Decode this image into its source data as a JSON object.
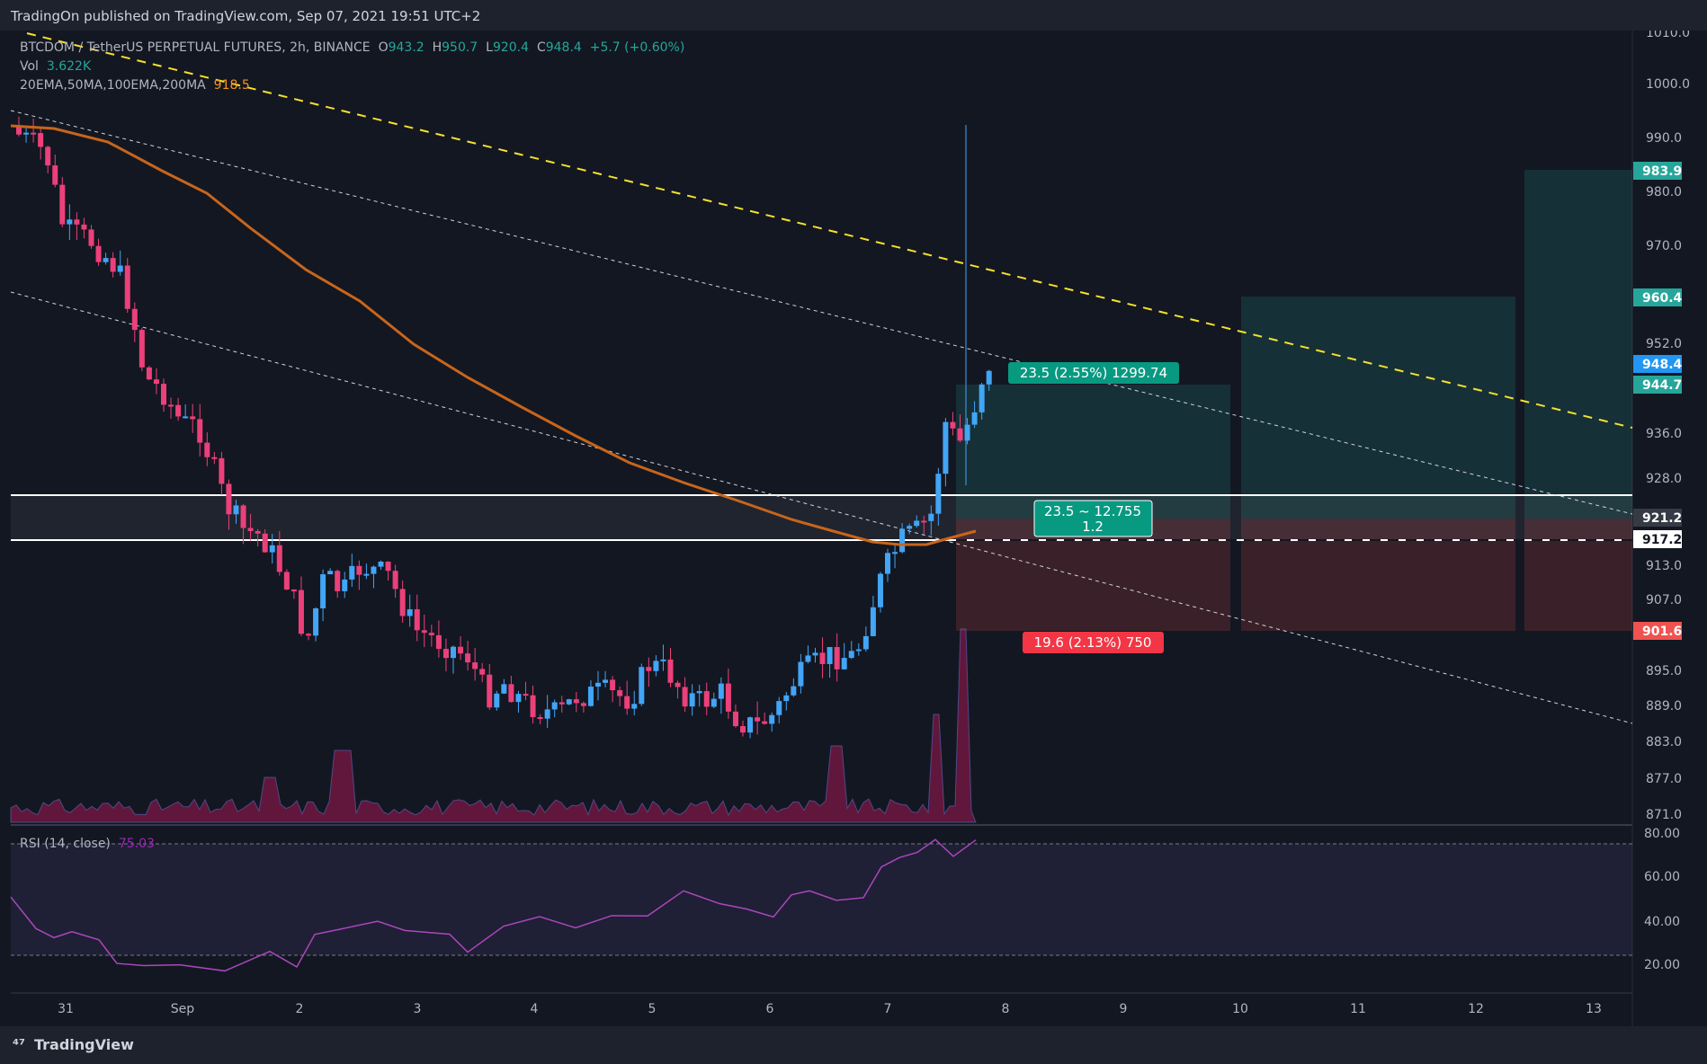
{
  "header": {
    "published": "TradingOn published on TradingView.com, Sep 07, 2021 19:51 UTC+2"
  },
  "legend": {
    "symbol": "BTCDOM / TetherUS PERPETUAL FUTURES, 2h, BINANCE",
    "o_label": "O",
    "o_value": "943.2",
    "h_label": "H",
    "h_value": "950.7",
    "l_label": "L",
    "l_value": "920.4",
    "c_label": "C",
    "c_value": "948.4",
    "change": "+5.7 (+0.60%)",
    "vol_label": "Vol",
    "vol_value": "3.622K",
    "ma_label": "20EMA,50MA,100EMA,200MA",
    "ma_value": "918.5"
  },
  "rsi": {
    "label": "RSI (14, close)",
    "value": "75.03"
  },
  "price_axis": {
    "ticks": [
      "1010.0",
      "1000.0",
      "990.0",
      "980.0",
      "970.0",
      "952.0",
      "936.0",
      "928.0",
      "913.0",
      "907.0",
      "895.0",
      "889.0",
      "883.0",
      "877.0",
      "871.0"
    ]
  },
  "price_badges": {
    "b1": "983.9",
    "b2": "960.4",
    "b3": "948.4",
    "b4": "944.7",
    "b5": "921.2",
    "b6": "917.2",
    "b7": "901.6"
  },
  "rsi_axis": {
    "ticks": [
      "80.00",
      "60.00",
      "40.00",
      "20.00"
    ]
  },
  "time_axis": {
    "labels": [
      "31",
      "Sep",
      "2",
      "3",
      "4",
      "5",
      "6",
      "7",
      "8",
      "9",
      "10",
      "11",
      "12",
      "13"
    ]
  },
  "position": {
    "target": "23.5 (2.55%) 1299.74",
    "ratio_top": "23.5 ~ 12.755",
    "ratio_bottom": "1.2",
    "stop": "19.6 (2.13%) 750"
  },
  "footer": {
    "brand": "TradingView"
  },
  "colors": {
    "up": "#42a5f5",
    "down": "#ec407a",
    "profit": "#26a69a",
    "loss": "#ef5350",
    "ma": "#c8651b",
    "trend": "#f5e12a"
  }
}
